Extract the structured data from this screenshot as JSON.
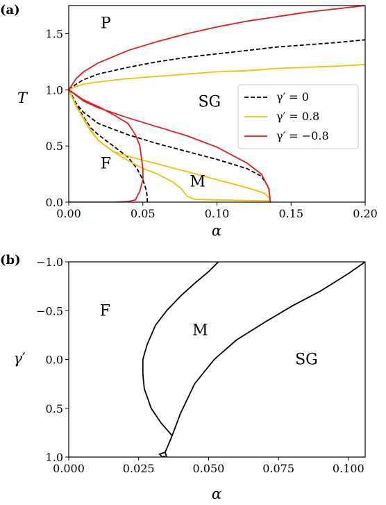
{
  "chart_data": [
    {
      "panel_label": "(a)",
      "type": "line",
      "xlabel": "α",
      "ylabel": "T",
      "xlim": [
        0,
        0.2
      ],
      "ylim": [
        0,
        1.75
      ],
      "xticks": [
        "0.00",
        "0.05",
        "0.10",
        "0.15",
        "0.20"
      ],
      "yticks": [
        "0.0",
        "0.5",
        "1.0",
        "1.5"
      ],
      "xtick_values": [
        0,
        0.05,
        0.1,
        0.15,
        0.2
      ],
      "ytick_values": [
        0,
        0.5,
        1.0,
        1.5
      ],
      "grid": false,
      "legend_position": "right",
      "region_labels": [
        {
          "text": "P",
          "x": 0.025,
          "y": 1.55
        },
        {
          "text": "SG",
          "x": 0.095,
          "y": 0.85
        },
        {
          "text": "F",
          "x": 0.025,
          "y": 0.3
        },
        {
          "text": "M",
          "x": 0.087,
          "y": 0.14
        }
      ],
      "series": [
        {
          "name": "γ′ = 0",
          "color": "#000000",
          "style": "dashed",
          "curves": [
            [
              [
                0,
                1.0
              ],
              [
                0.005,
                1.05
              ],
              [
                0.01,
                1.09
              ],
              [
                0.02,
                1.14
              ],
              [
                0.04,
                1.2
              ],
              [
                0.06,
                1.25
              ],
              [
                0.08,
                1.29
              ],
              [
                0.1,
                1.32
              ],
              [
                0.12,
                1.35
              ],
              [
                0.14,
                1.38
              ],
              [
                0.16,
                1.4
              ],
              [
                0.18,
                1.42
              ],
              [
                0.2,
                1.445
              ]
            ],
            [
              [
                0,
                1.0
              ],
              [
                0.005,
                0.88
              ],
              [
                0.01,
                0.8
              ],
              [
                0.02,
                0.7
              ],
              [
                0.04,
                0.6
              ],
              [
                0.06,
                0.52
              ],
              [
                0.08,
                0.45
              ],
              [
                0.1,
                0.38
              ],
              [
                0.12,
                0.3
              ],
              [
                0.13,
                0.23
              ],
              [
                0.135,
                0.13
              ],
              [
                0.136,
                0.0
              ]
            ],
            [
              [
                0,
                1.0
              ],
              [
                0.005,
                0.87
              ],
              [
                0.01,
                0.76
              ],
              [
                0.015,
                0.66
              ],
              [
                0.02,
                0.6
              ],
              [
                0.03,
                0.5
              ],
              [
                0.04,
                0.4
              ],
              [
                0.046,
                0.3
              ],
              [
                0.05,
                0.2
              ],
              [
                0.052,
                0.12
              ],
              [
                0.053,
                0.05
              ],
              [
                0.053,
                0.0
              ]
            ]
          ]
        },
        {
          "name": "γ′ = 0.8",
          "color": "#f5c000",
          "style": "solid",
          "curves": [
            [
              [
                0,
                1.0
              ],
              [
                0.005,
                1.03
              ],
              [
                0.01,
                1.05
              ],
              [
                0.02,
                1.07
              ],
              [
                0.04,
                1.1
              ],
              [
                0.06,
                1.12
              ],
              [
                0.08,
                1.14
              ],
              [
                0.1,
                1.16
              ],
              [
                0.12,
                1.17
              ],
              [
                0.14,
                1.19
              ],
              [
                0.16,
                1.2
              ],
              [
                0.18,
                1.21
              ],
              [
                0.2,
                1.225
              ]
            ],
            [
              [
                0,
                1.0
              ],
              [
                0.005,
                0.85
              ],
              [
                0.01,
                0.75
              ],
              [
                0.015,
                0.64
              ],
              [
                0.02,
                0.55
              ],
              [
                0.03,
                0.45
              ],
              [
                0.045,
                0.39
              ],
              [
                0.06,
                0.34
              ],
              [
                0.08,
                0.27
              ],
              [
                0.1,
                0.2
              ],
              [
                0.12,
                0.13
              ],
              [
                0.132,
                0.08
              ],
              [
                0.136,
                0.03
              ]
            ],
            [
              [
                0,
                1.0
              ],
              [
                0.005,
                0.86
              ],
              [
                0.01,
                0.74
              ],
              [
                0.015,
                0.63
              ],
              [
                0.02,
                0.55
              ],
              [
                0.03,
                0.45
              ],
              [
                0.04,
                0.37
              ],
              [
                0.05,
                0.3
              ],
              [
                0.06,
                0.25
              ],
              [
                0.07,
                0.18
              ],
              [
                0.076,
                0.12
              ],
              [
                0.08,
                0.05
              ],
              [
                0.085,
                0.025
              ],
              [
                0.1,
                0.02
              ],
              [
                0.12,
                0.015
              ],
              [
                0.136,
                0.01
              ]
            ]
          ]
        },
        {
          "name": "γ′ = −0.8",
          "color": "#e41a1c",
          "style": "solid",
          "curves": [
            [
              [
                0,
                1.0
              ],
              [
                0.005,
                1.1
              ],
              [
                0.01,
                1.16
              ],
              [
                0.02,
                1.24
              ],
              [
                0.04,
                1.35
              ],
              [
                0.06,
                1.43
              ],
              [
                0.08,
                1.5
              ],
              [
                0.1,
                1.56
              ],
              [
                0.12,
                1.61
              ],
              [
                0.14,
                1.65
              ],
              [
                0.16,
                1.69
              ],
              [
                0.18,
                1.72
              ],
              [
                0.2,
                1.75
              ]
            ],
            [
              [
                0,
                1.0
              ],
              [
                0.01,
                0.9
              ],
              [
                0.02,
                0.84
              ],
              [
                0.04,
                0.75
              ],
              [
                0.06,
                0.67
              ],
              [
                0.08,
                0.59
              ],
              [
                0.1,
                0.49
              ],
              [
                0.12,
                0.35
              ],
              [
                0.13,
                0.25
              ],
              [
                0.135,
                0.12
              ],
              [
                0.136,
                0.0
              ]
            ],
            [
              [
                0,
                1.0
              ],
              [
                0.01,
                0.91
              ],
              [
                0.02,
                0.85
              ],
              [
                0.03,
                0.78
              ],
              [
                0.04,
                0.7
              ],
              [
                0.045,
                0.6
              ],
              [
                0.048,
                0.5
              ],
              [
                0.049,
                0.4
              ],
              [
                0.05,
                0.3
              ],
              [
                0.05,
                0.2
              ],
              [
                0.048,
                0.1
              ],
              [
                0.045,
                0.02
              ],
              [
                0.04,
                0.005
              ],
              [
                0.03,
                0.0
              ],
              [
                0.0,
                0.0
              ]
            ]
          ]
        }
      ]
    },
    {
      "panel_label": "(b)",
      "type": "line",
      "xlabel": "α",
      "ylabel": "γ′",
      "xlim": [
        0,
        0.106
      ],
      "ylim": [
        1.0,
        -1.0
      ],
      "y_inverted": true,
      "xticks": [
        "0.000",
        "0.025",
        "0.050",
        "0.075",
        "0.100"
      ],
      "yticks": [
        "−1.0",
        "−0.5",
        "0.0",
        "0.5",
        "1.0"
      ],
      "xtick_values": [
        0,
        0.025,
        0.05,
        0.075,
        0.1
      ],
      "ytick_values": [
        -1.0,
        -0.5,
        0.0,
        0.5,
        1.0
      ],
      "grid": false,
      "region_labels": [
        {
          "text": "F",
          "x": 0.013,
          "y": -0.45
        },
        {
          "text": "M",
          "x": 0.047,
          "y": -0.25
        },
        {
          "text": "SG",
          "x": 0.085,
          "y": 0.05
        }
      ],
      "series": [
        {
          "color": "#000000",
          "style": "solid",
          "curves": [
            [
              [
                0.0535,
                -1.0
              ],
              [
                0.05,
                -0.9
              ],
              [
                0.045,
                -0.78
              ],
              [
                0.04,
                -0.65
              ],
              [
                0.035,
                -0.5
              ],
              [
                0.031,
                -0.35
              ],
              [
                0.028,
                -0.15
              ],
              [
                0.0265,
                0.0
              ],
              [
                0.0265,
                0.15
              ],
              [
                0.027,
                0.3
              ],
              [
                0.0295,
                0.5
              ],
              [
                0.033,
                0.65
              ],
              [
                0.037,
                0.78
              ]
            ],
            [
              [
                0.106,
                -1.0
              ],
              [
                0.1,
                -0.88
              ],
              [
                0.09,
                -0.7
              ],
              [
                0.08,
                -0.55
              ],
              [
                0.07,
                -0.38
              ],
              [
                0.06,
                -0.2
              ],
              [
                0.052,
                0.0
              ],
              [
                0.045,
                0.25
              ],
              [
                0.04,
                0.55
              ],
              [
                0.037,
                0.78
              ],
              [
                0.0345,
                0.95
              ],
              [
                0.035,
                1.0
              ]
            ],
            [
              [
                0.0345,
                0.95
              ],
              [
                0.0325,
                0.97
              ],
              [
                0.0335,
                1.0
              ],
              [
                0.0345,
                0.99
              ]
            ]
          ]
        }
      ]
    }
  ]
}
